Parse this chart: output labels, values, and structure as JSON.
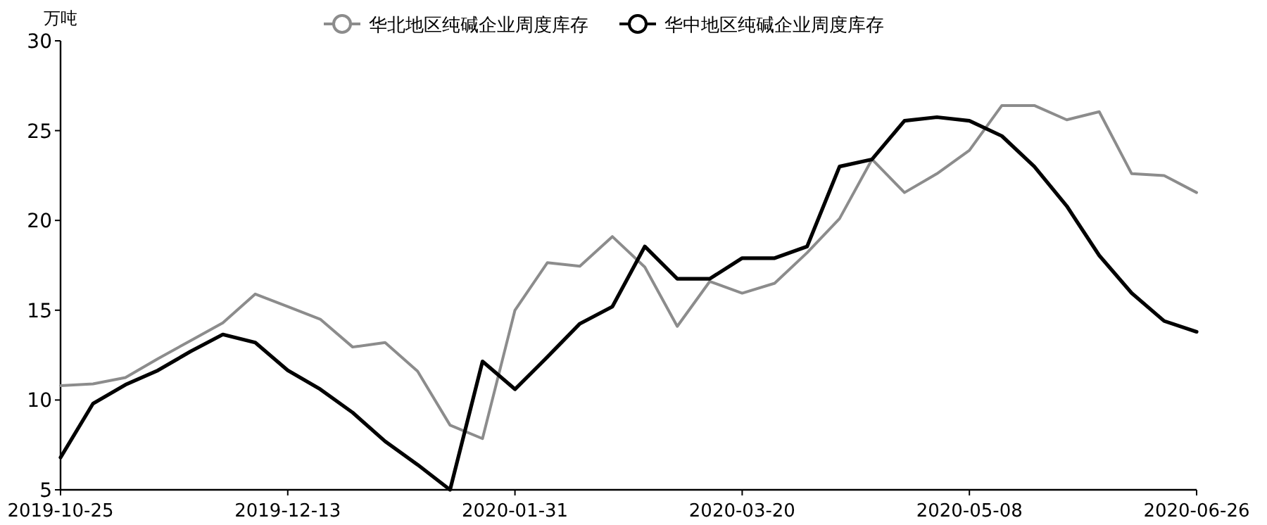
{
  "chart_data": {
    "type": "line",
    "ylabel": "万吨",
    "legend": "top",
    "x": [
      "2019-10-25",
      "2019-11-01",
      "2019-11-08",
      "2019-11-15",
      "2019-11-22",
      "2019-11-29",
      "2019-12-06",
      "2019-12-13",
      "2019-12-20",
      "2019-12-27",
      "2020-01-03",
      "2020-01-10",
      "2020-01-17",
      "2020-01-24",
      "2020-01-31",
      "2020-02-07",
      "2020-02-14",
      "2020-02-21",
      "2020-02-28",
      "2020-03-06",
      "2020-03-13",
      "2020-03-20",
      "2020-03-27",
      "2020-04-03",
      "2020-04-10",
      "2020-04-17",
      "2020-04-24",
      "2020-05-01",
      "2020-05-08",
      "2020-05-15",
      "2020-05-22",
      "2020-05-29",
      "2020-06-05",
      "2020-06-12",
      "2020-06-19",
      "2020-06-26"
    ],
    "series": [
      {
        "name": "华北地区纯碱企业周度库存",
        "color": "#8c8c8c",
        "values": [
          10.8,
          10.9,
          11.25,
          12.3,
          13.3,
          14.3,
          15.9,
          15.2,
          14.5,
          12.95,
          13.2,
          11.6,
          8.6,
          7.85,
          15.0,
          17.65,
          17.45,
          19.1,
          17.4,
          14.1,
          16.6,
          15.95,
          16.5,
          18.2,
          20.1,
          23.4,
          21.55,
          22.6,
          23.9,
          26.4,
          26.4,
          25.6,
          26.05,
          22.6,
          22.5,
          21.55
        ]
      },
      {
        "name": "华中地区纯碱企业周度库存",
        "color": "#000000",
        "values": [
          6.8,
          9.8,
          10.85,
          11.65,
          12.7,
          13.65,
          13.2,
          11.65,
          10.6,
          9.3,
          7.7,
          6.4,
          5.0,
          12.15,
          10.6,
          12.4,
          14.25,
          15.2,
          18.55,
          16.75,
          16.75,
          17.9,
          17.9,
          18.55,
          23.0,
          23.4,
          25.55,
          25.75,
          25.55,
          24.7,
          23.0,
          20.8,
          18.05,
          15.95,
          14.4,
          13.8
        ]
      }
    ],
    "xlim": [
      "2019-10-25",
      "2020-06-26"
    ],
    "xticks": [
      "2019-10-25",
      "2019-12-13",
      "2020-01-31",
      "2020-03-20",
      "2020-05-08",
      "2020-06-26"
    ],
    "ylim": [
      5,
      30
    ],
    "yticks": [
      5,
      10,
      15,
      20,
      25,
      30
    ]
  }
}
